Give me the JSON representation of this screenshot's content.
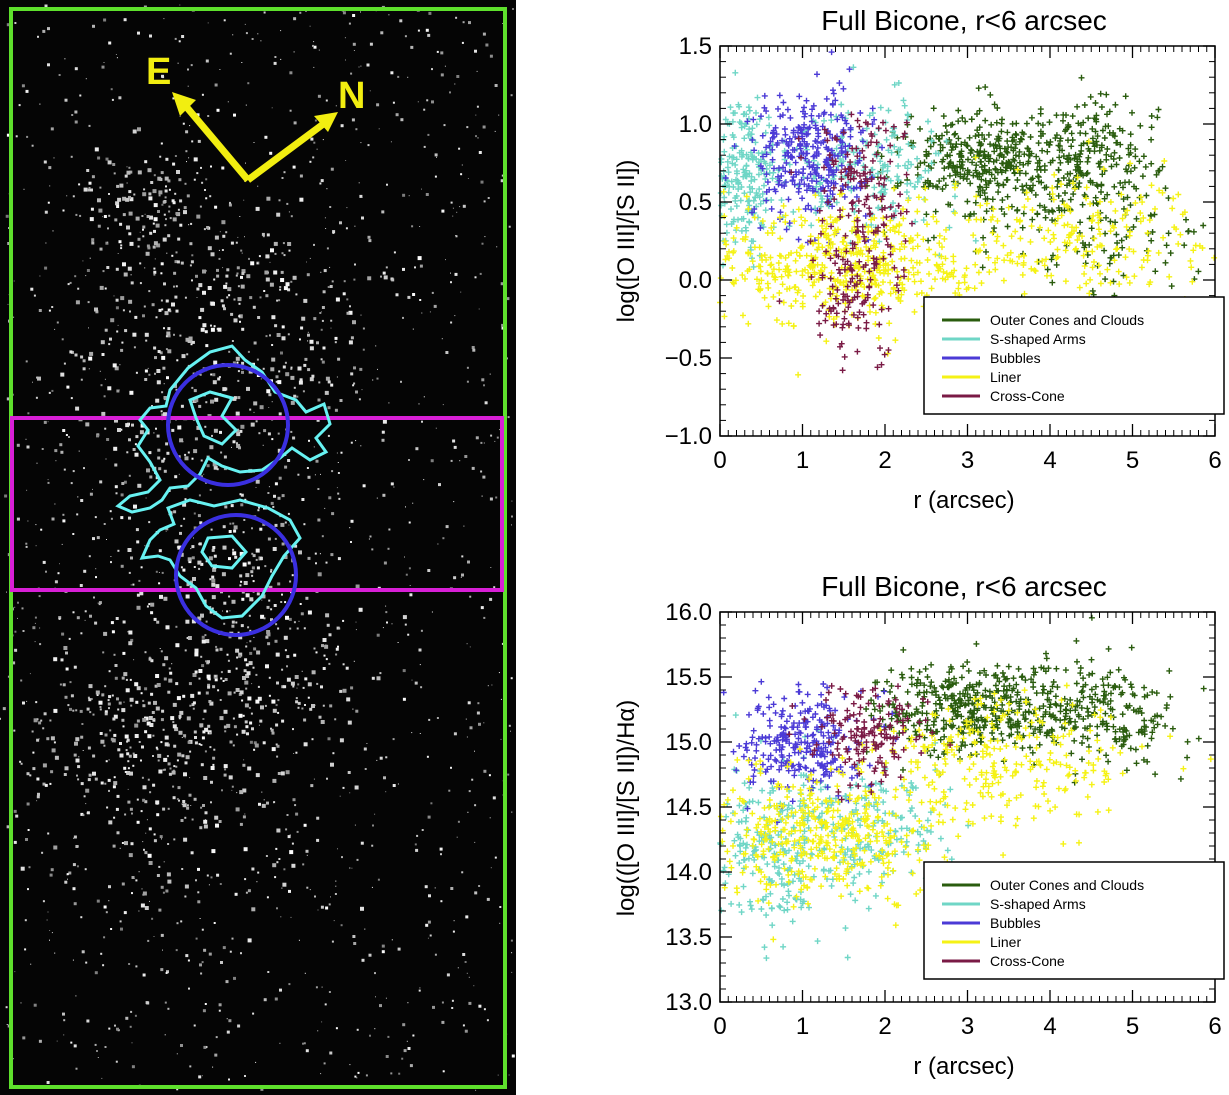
{
  "image_panel": {
    "compass": {
      "east": "E",
      "north": "N"
    },
    "colors": {
      "frame": "#5ee02c",
      "slit": "#d81fd6",
      "contour": "#67f2f2",
      "circles": "#3a2fe0",
      "compass": "#f2ee10",
      "background": "#050505"
    }
  },
  "chart_data": [
    {
      "type": "scatter",
      "title": "Full Bicone, r<6 arcsec",
      "xlabel": "r (arcsec)",
      "ylabel": "log([O III]/[S II])",
      "xlim": [
        0,
        6
      ],
      "ylim": [
        -1.0,
        1.5
      ],
      "xticks": [
        "0",
        "1",
        "2",
        "3",
        "4",
        "5",
        "6"
      ],
      "yticks": [
        "−1.0",
        "−0.5",
        "0.0",
        "0.5",
        "1.0",
        "1.5"
      ],
      "legend": {
        "placement": "bottom-right"
      },
      "series": [
        {
          "name": "Outer Cones and Clouds",
          "color": "#2a5c0e",
          "clusters": [
            {
              "cx": 3.3,
              "cy": 0.75,
              "sx": 0.55,
              "sy": 0.18,
              "n": 420
            },
            {
              "cx": 4.6,
              "cy": 0.8,
              "sx": 0.35,
              "sy": 0.18,
              "n": 160
            },
            {
              "cx": 4.8,
              "cy": 0.2,
              "sx": 0.7,
              "sy": 0.25,
              "n": 110
            }
          ]
        },
        {
          "name": "S-shaped Arms",
          "color": "#6fd6c6",
          "clusters": [
            {
              "cx": 0.3,
              "cy": 0.65,
              "sx": 0.2,
              "sy": 0.25,
              "n": 200
            },
            {
              "cx": 1.7,
              "cy": 0.75,
              "sx": 0.6,
              "sy": 0.2,
              "n": 220
            }
          ]
        },
        {
          "name": "Bubbles",
          "color": "#4b3ad6",
          "clusters": [
            {
              "cx": 1.1,
              "cy": 0.8,
              "sx": 0.35,
              "sy": 0.2,
              "n": 300
            }
          ]
        },
        {
          "name": "Liner",
          "color": "#f5f215",
          "clusters": [
            {
              "cx": 1.5,
              "cy": 0.1,
              "sx": 0.8,
              "sy": 0.2,
              "n": 520
            },
            {
              "cx": 4.3,
              "cy": 0.3,
              "sx": 0.9,
              "sy": 0.2,
              "n": 220
            }
          ]
        },
        {
          "name": "Cross-Cone",
          "color": "#7a1a45",
          "clusters": [
            {
              "cx": 1.7,
              "cy": 0.55,
              "sx": 0.3,
              "sy": 0.3,
              "n": 150
            },
            {
              "cx": 1.6,
              "cy": -0.1,
              "sx": 0.3,
              "sy": 0.2,
              "n": 100
            }
          ]
        }
      ]
    },
    {
      "type": "scatter",
      "title": "Full Bicone, r<6 arcsec",
      "xlabel": "r (arcsec)",
      "ylabel": "log(([O III]/[S II])/Hα)",
      "xlim": [
        0,
        6
      ],
      "ylim": [
        13.0,
        16.0
      ],
      "xticks": [
        "0",
        "1",
        "2",
        "3",
        "4",
        "5",
        "6"
      ],
      "yticks": [
        "13.0",
        "13.5",
        "14.0",
        "14.5",
        "15.0",
        "15.5",
        "16.0"
      ],
      "legend": {
        "placement": "bottom-right"
      },
      "series": [
        {
          "name": "Outer Cones and Clouds",
          "color": "#2a5c0e",
          "clusters": [
            {
              "cx": 3.1,
              "cy": 15.25,
              "sx": 0.6,
              "sy": 0.18,
              "n": 420
            },
            {
              "cx": 4.7,
              "cy": 15.2,
              "sx": 0.45,
              "sy": 0.2,
              "n": 200
            }
          ]
        },
        {
          "name": "S-shaped Arms",
          "color": "#6fd6c6",
          "clusters": [
            {
              "cx": 0.6,
              "cy": 14.2,
              "sx": 0.35,
              "sy": 0.3,
              "n": 220
            },
            {
              "cx": 1.8,
              "cy": 14.3,
              "sx": 0.5,
              "sy": 0.25,
              "n": 200
            }
          ]
        },
        {
          "name": "Bubbles",
          "color": "#4b3ad6",
          "clusters": [
            {
              "cx": 1.0,
              "cy": 15.0,
              "sx": 0.35,
              "sy": 0.2,
              "n": 260
            }
          ]
        },
        {
          "name": "Liner",
          "color": "#f5f215",
          "clusters": [
            {
              "cx": 1.3,
              "cy": 14.3,
              "sx": 0.7,
              "sy": 0.25,
              "n": 420
            },
            {
              "cx": 3.5,
              "cy": 14.85,
              "sx": 0.8,
              "sy": 0.25,
              "n": 260
            }
          ]
        },
        {
          "name": "Cross-Cone",
          "color": "#7a1a45",
          "clusters": [
            {
              "cx": 1.8,
              "cy": 15.05,
              "sx": 0.35,
              "sy": 0.2,
              "n": 150
            }
          ]
        }
      ]
    }
  ]
}
